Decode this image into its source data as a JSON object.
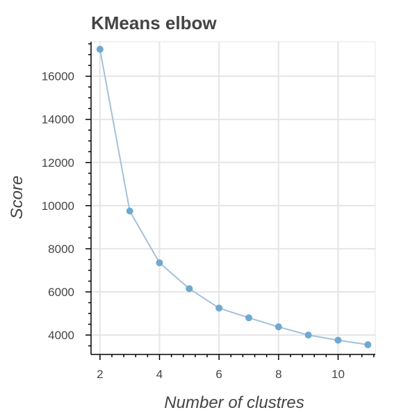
{
  "chart_data": {
    "type": "line",
    "title": "KMeans elbow",
    "xlabel": "Number of clustres",
    "ylabel": "Score",
    "x": [
      2,
      3,
      4,
      5,
      6,
      7,
      8,
      9,
      10,
      11
    ],
    "series": [
      {
        "values": [
          17250,
          9750,
          7350,
          6150,
          5250,
          4800,
          4380,
          4000,
          3760,
          3550
        ],
        "color": "#a3c1da",
        "marker_color": "#6fa8d0"
      }
    ],
    "xlim": [
      1.7,
      11.25
    ],
    "ylim": [
      3100,
      17600
    ],
    "xticks": [
      2,
      4,
      6,
      8,
      10
    ],
    "xtick_labels": [
      "2",
      "4",
      "6",
      "8",
      "10"
    ],
    "yticks": [
      4000,
      6000,
      8000,
      10000,
      12000,
      14000,
      16000
    ],
    "ytick_labels": [
      "4000",
      "6000",
      "8000",
      "10000",
      "12000",
      "14000",
      "16000"
    ],
    "grid": true,
    "legend": "none",
    "colors": {
      "title": "#444444",
      "axis": "#000000",
      "tick_label": "#444444",
      "axis_label": "#444444",
      "grid": "#e5e5e5",
      "frame": "#e5e5e5"
    }
  }
}
